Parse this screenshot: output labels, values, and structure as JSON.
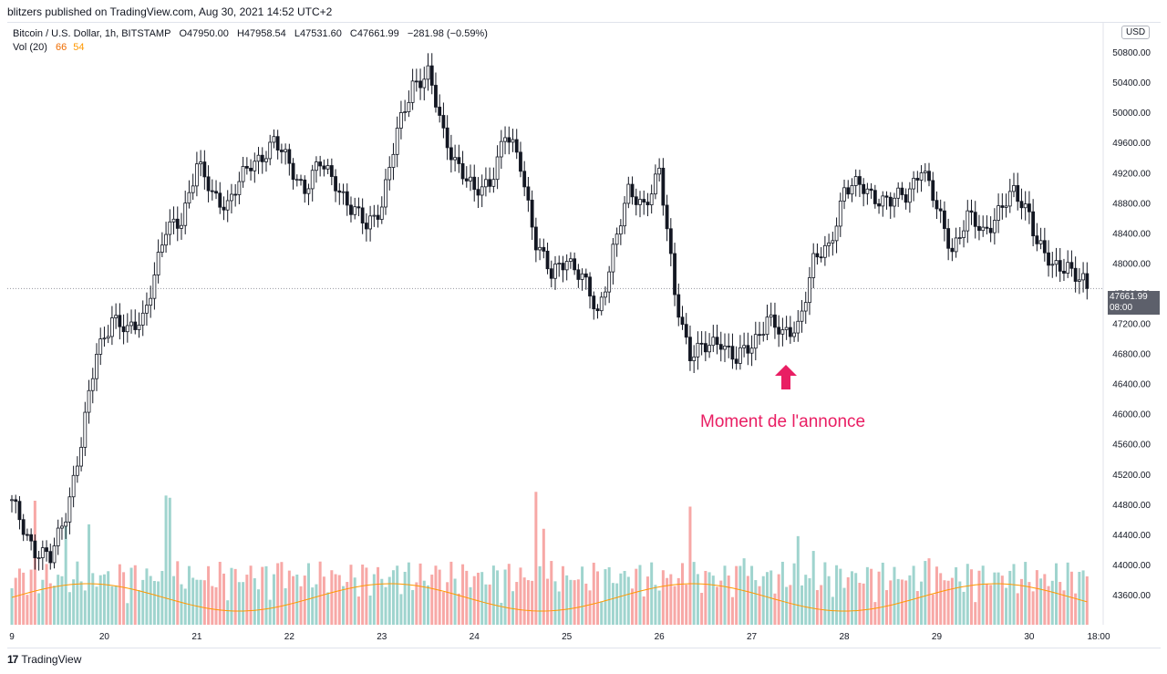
{
  "header": {
    "publisher_line": "blitzers published on TradingView.com, Aug 30, 2021 14:52 UTC+2"
  },
  "legend": {
    "symbol": "Bitcoin / U.S. Dollar, 1h, BITSTAMP",
    "open": "O47950.00",
    "high": "H47958.54",
    "low": "L47531.60",
    "close": "C47661.99",
    "change": "−281.98 (−0.59%)",
    "vol_label": "Vol (20)",
    "vol_value_a": "66",
    "vol_value_b": "54"
  },
  "currency_badge": "USD",
  "last_price": {
    "value": "47661.99",
    "time": "08:00"
  },
  "annotation": {
    "text": "Moment de l'annonce",
    "color": "#e91e63"
  },
  "footer": {
    "brand": "TradingView"
  },
  "colors": {
    "up": "#26a69a",
    "down": "#ef5350",
    "candle": "#131722",
    "ma": "#ff9800",
    "text": "#131722"
  },
  "chart_data": {
    "type": "candlestick",
    "ylim": [
      43200,
      51200
    ],
    "y_ticks": [
      43600,
      44000,
      44400,
      44800,
      45200,
      45600,
      46000,
      46400,
      46800,
      47200,
      47600,
      48000,
      48400,
      48800,
      49200,
      49600,
      50000,
      50400,
      50800
    ],
    "x_labels": [
      "9",
      "20",
      "21",
      "22",
      "23",
      "24",
      "25",
      "26",
      "27",
      "28",
      "29",
      "30",
      "18:00"
    ],
    "x_label_index": [
      0,
      24,
      48,
      72,
      96,
      120,
      144,
      168,
      192,
      216,
      240,
      264,
      282
    ],
    "close_anchors": [
      [
        0,
        44800
      ],
      [
        6,
        44200
      ],
      [
        10,
        44050
      ],
      [
        14,
        44700
      ],
      [
        18,
        45600
      ],
      [
        22,
        46800
      ],
      [
        26,
        47300
      ],
      [
        30,
        47050
      ],
      [
        34,
        47300
      ],
      [
        40,
        48400
      ],
      [
        44,
        48600
      ],
      [
        48,
        49300
      ],
      [
        52,
        48900
      ],
      [
        56,
        48800
      ],
      [
        62,
        49300
      ],
      [
        68,
        49600
      ],
      [
        72,
        49300
      ],
      [
        76,
        49000
      ],
      [
        80,
        49300
      ],
      [
        84,
        49100
      ],
      [
        88,
        48700
      ],
      [
        92,
        48500
      ],
      [
        96,
        48800
      ],
      [
        100,
        49700
      ],
      [
        104,
        50400
      ],
      [
        108,
        50500
      ],
      [
        112,
        49700
      ],
      [
        116,
        49300
      ],
      [
        120,
        48900
      ],
      [
        124,
        49100
      ],
      [
        128,
        49700
      ],
      [
        132,
        49300
      ],
      [
        136,
        48300
      ],
      [
        140,
        47800
      ],
      [
        144,
        48100
      ],
      [
        148,
        47800
      ],
      [
        152,
        47300
      ],
      [
        156,
        48200
      ],
      [
        160,
        48900
      ],
      [
        164,
        48800
      ],
      [
        168,
        49200
      ],
      [
        172,
        47600
      ],
      [
        176,
        46800
      ],
      [
        180,
        46850
      ],
      [
        184,
        47000
      ],
      [
        188,
        46700
      ],
      [
        192,
        46900
      ],
      [
        196,
        47300
      ],
      [
        200,
        47000
      ],
      [
        204,
        47200
      ],
      [
        208,
        48000
      ],
      [
        212,
        48200
      ],
      [
        216,
        49000
      ],
      [
        220,
        49000
      ],
      [
        224,
        48900
      ],
      [
        228,
        48800
      ],
      [
        232,
        48900
      ],
      [
        236,
        49300
      ],
      [
        240,
        48700
      ],
      [
        244,
        48200
      ],
      [
        248,
        48600
      ],
      [
        252,
        48400
      ],
      [
        256,
        48700
      ],
      [
        260,
        48900
      ],
      [
        264,
        48700
      ],
      [
        266,
        48300
      ],
      [
        270,
        47900
      ],
      [
        274,
        48000
      ],
      [
        279,
        47662
      ]
    ],
    "volume_peaks": [
      [
        6,
        44880
      ],
      [
        14,
        44600
      ],
      [
        20,
        44560
      ],
      [
        40,
        44950
      ],
      [
        41,
        44920
      ],
      [
        62,
        44000
      ],
      [
        70,
        44050
      ],
      [
        100,
        44000
      ],
      [
        110,
        44000
      ],
      [
        136,
        45000
      ],
      [
        138,
        44500
      ],
      [
        176,
        44800
      ],
      [
        190,
        44100
      ],
      [
        204,
        44400
      ],
      [
        208,
        44200
      ],
      [
        228,
        43800
      ],
      [
        238,
        44100
      ]
    ],
    "volume_ma_last": [
      54
    ],
    "last_close": 47661.99
  }
}
